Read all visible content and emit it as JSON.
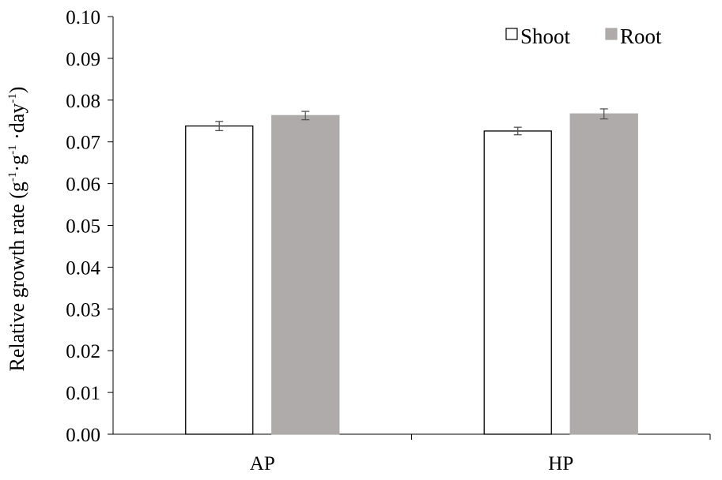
{
  "chart_data": {
    "type": "bar",
    "categories": [
      "AP",
      "HP"
    ],
    "series": [
      {
        "name": "Shoot",
        "values": [
          0.0738,
          0.0726
        ],
        "errors": [
          0.0011,
          0.0009
        ],
        "fill": "#ffffff",
        "stroke": "#000000"
      },
      {
        "name": "Root",
        "values": [
          0.0763,
          0.0767
        ],
        "errors": [
          0.001,
          0.0012
        ],
        "fill": "#afabab",
        "stroke": "#afabab"
      }
    ],
    "ylabel_parts": {
      "text": "Relative  growth rate (g",
      "sup1": "-1",
      "mid1": "·g",
      "sup2": "-1",
      "mid2": " ·day",
      "sup3": "-1",
      "end": ")"
    },
    "ylim": [
      0,
      0.1
    ],
    "yticks": [
      "0.00",
      "0.01",
      "0.02",
      "0.03",
      "0.04",
      "0.05",
      "0.06",
      "0.07",
      "0.08",
      "0.09",
      "0.10"
    ],
    "legend_position": "top-right",
    "grid": false
  }
}
